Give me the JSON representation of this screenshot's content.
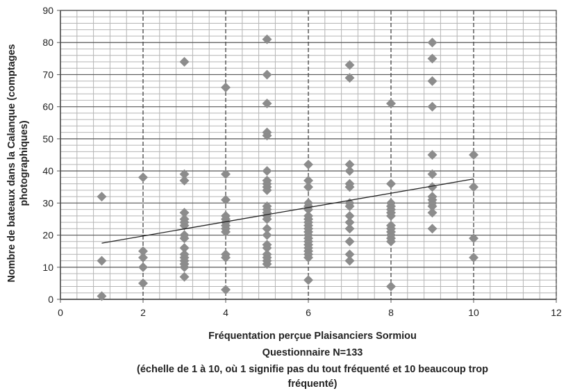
{
  "chart_data": {
    "type": "scatter",
    "title": "",
    "xlabel": [
      "Fréquentation perçue Plaisanciers Sormiou",
      "Questionnaire N=133",
      "(échelle de 1 à 10, où 1 signifie pas du tout fréquenté et 10 beaucoup trop",
      "fréquenté)"
    ],
    "ylabel": "Nombre de bateaux dans la Calanque (comptages photographiques)",
    "xlim": [
      0,
      12
    ],
    "ylim": [
      0,
      90
    ],
    "xticks": [
      0,
      2,
      4,
      6,
      8,
      10,
      12
    ],
    "yticks": [
      0,
      10,
      20,
      30,
      40,
      50,
      60,
      70,
      80,
      90
    ],
    "grid": true,
    "legend": "none",
    "marker": "diamond",
    "marker_color": "#8c8c8c",
    "trendline": {
      "x": [
        1,
        10
      ],
      "y": [
        17.5,
        37.5
      ]
    },
    "series": [
      {
        "x": [
          1,
          1,
          1,
          2,
          2,
          2,
          2,
          2,
          3,
          3,
          3,
          3,
          3,
          3,
          3,
          3,
          3,
          3,
          3,
          3,
          3,
          3,
          3,
          3,
          4,
          4,
          4,
          4,
          4,
          4,
          4,
          4,
          4,
          4,
          4,
          4,
          5,
          5,
          5,
          5,
          5,
          5,
          5,
          5,
          5,
          5,
          5,
          5,
          5,
          5,
          5,
          5,
          5,
          5,
          5,
          5,
          5,
          5,
          5,
          6,
          6,
          6,
          6,
          6,
          6,
          6,
          6,
          6,
          6,
          6,
          6,
          6,
          6,
          6,
          6,
          6,
          6,
          6,
          6,
          6,
          7,
          7,
          7,
          7,
          7,
          7,
          7,
          7,
          7,
          7,
          7,
          7,
          7,
          7,
          8,
          8,
          8,
          8,
          8,
          8,
          8,
          8,
          8,
          8,
          8,
          8,
          8,
          8,
          9,
          9,
          9,
          9,
          9,
          9,
          9,
          9,
          9,
          9,
          9,
          9,
          9,
          10,
          10,
          10,
          10
        ],
        "y": [
          32,
          12,
          1,
          38,
          15,
          13,
          10,
          5,
          74,
          39,
          37,
          27,
          25,
          24,
          23,
          20,
          19,
          16,
          14,
          13,
          12,
          11,
          10,
          7,
          66,
          39,
          31,
          26,
          25,
          24,
          23,
          22,
          14,
          13,
          3,
          21,
          81,
          70,
          61,
          52,
          51,
          40,
          37,
          36,
          35,
          34,
          29,
          28,
          27,
          26,
          25,
          22,
          20,
          17,
          16,
          14,
          13,
          12,
          11,
          42,
          37,
          35,
          30,
          29,
          26,
          25,
          24,
          23,
          22,
          21,
          19,
          18,
          17,
          16,
          15,
          14,
          13,
          6,
          28,
          20,
          73,
          69,
          42,
          40,
          36,
          35,
          30,
          26,
          24,
          22,
          18,
          14,
          12,
          29,
          61,
          36,
          30,
          29,
          28,
          27,
          26,
          22,
          21,
          20,
          19,
          18,
          4,
          23,
          80,
          75,
          68,
          60,
          45,
          39,
          35,
          32,
          30,
          29,
          27,
          22,
          31,
          45,
          35,
          19,
          13
        ]
      }
    ]
  }
}
